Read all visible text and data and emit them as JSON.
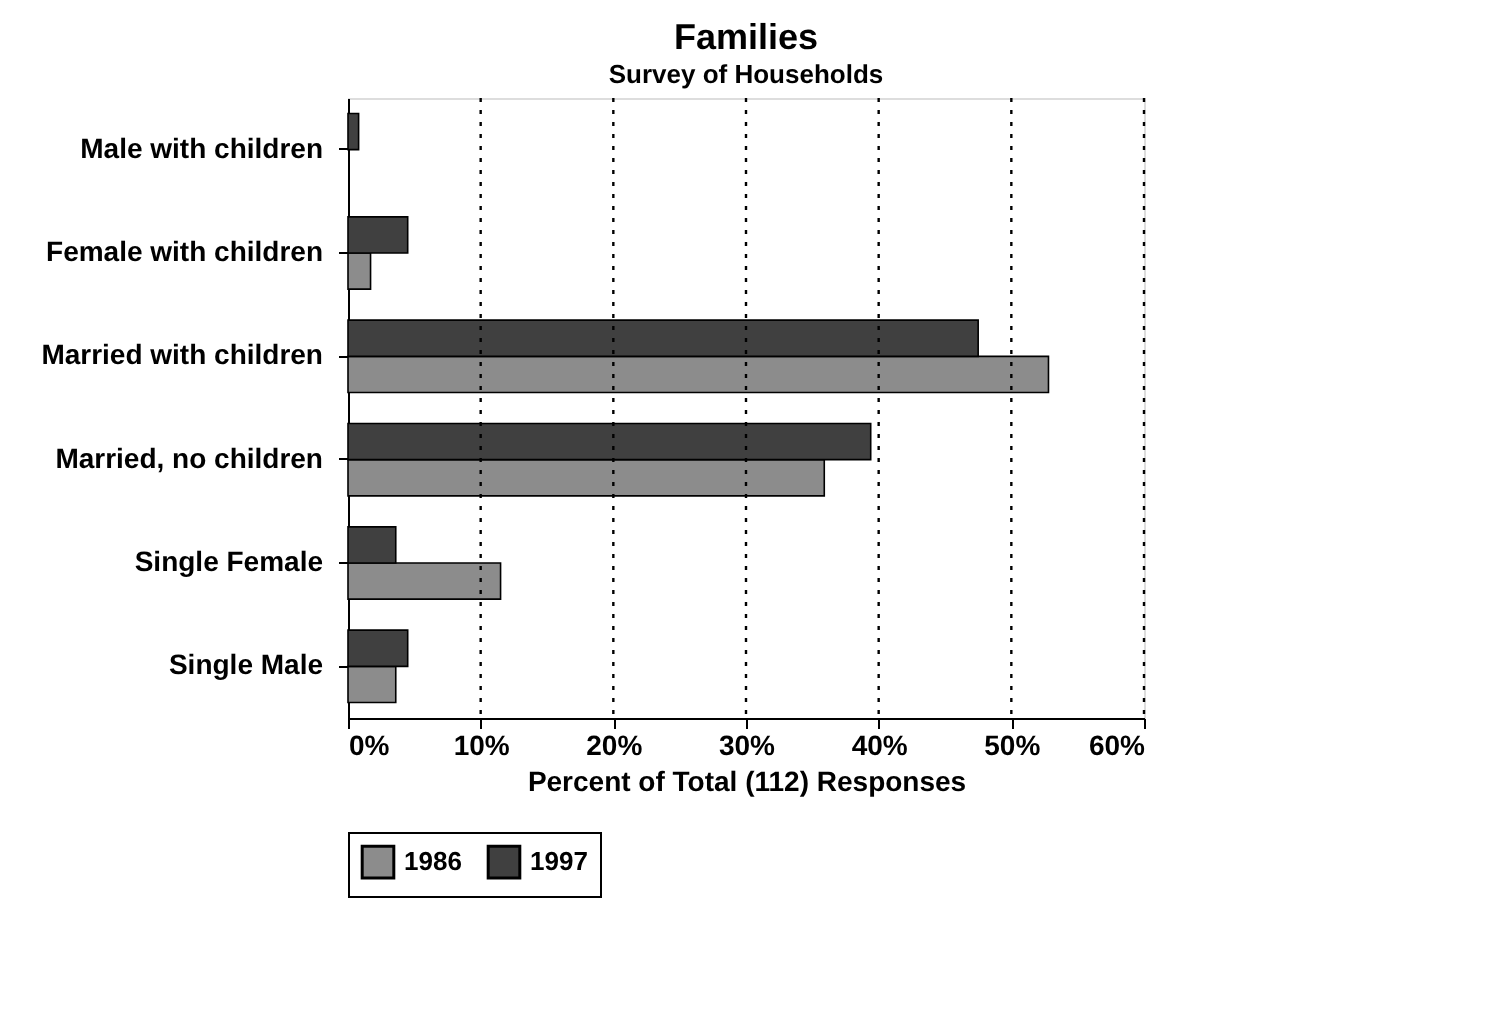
{
  "chart_data": {
    "type": "bar",
    "orientation": "horizontal",
    "title": "Families",
    "subtitle": "Survey of Households",
    "xlabel": "Percent of Total (112) Responses",
    "categories": [
      "Male with children",
      "Female with children",
      "Married with children",
      "Married, no children",
      "Single Female",
      "Single Male"
    ],
    "series": [
      {
        "name": "1986",
        "color": "#8c8c8c",
        "values": [
          null,
          1.7,
          52.8,
          35.9,
          11.5,
          3.6
        ]
      },
      {
        "name": "1997",
        "color": "#404040",
        "values": [
          0.8,
          4.5,
          47.5,
          39.4,
          3.6,
          4.5
        ]
      }
    ],
    "xlim": [
      0,
      60
    ],
    "xticks": [
      {
        "value": 0,
        "label": "0%"
      },
      {
        "value": 10,
        "label": "10%"
      },
      {
        "value": 20,
        "label": "20%"
      },
      {
        "value": 30,
        "label": "30%"
      },
      {
        "value": 40,
        "label": "40%"
      },
      {
        "value": 50,
        "label": "50%"
      },
      {
        "value": 60,
        "label": "60%"
      }
    ],
    "grid": "x",
    "legend": "bottom"
  }
}
